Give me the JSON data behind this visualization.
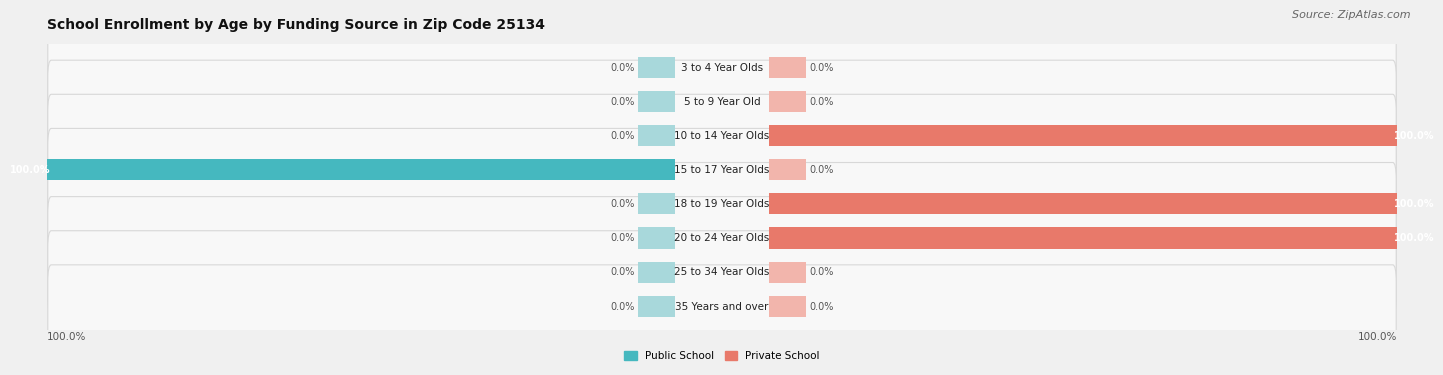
{
  "title": "School Enrollment by Age by Funding Source in Zip Code 25134",
  "source": "Source: ZipAtlas.com",
  "categories": [
    "3 to 4 Year Olds",
    "5 to 9 Year Old",
    "10 to 14 Year Olds",
    "15 to 17 Year Olds",
    "18 to 19 Year Olds",
    "20 to 24 Year Olds",
    "25 to 34 Year Olds",
    "35 Years and over"
  ],
  "public_vals": [
    0.0,
    0.0,
    0.0,
    100.0,
    0.0,
    0.0,
    0.0,
    0.0
  ],
  "private_vals": [
    0.0,
    0.0,
    100.0,
    0.0,
    100.0,
    100.0,
    0.0,
    0.0
  ],
  "public_color": "#45b8bf",
  "private_color": "#e8796a",
  "public_stub_color": "#a8d8db",
  "private_stub_color": "#f2b5ac",
  "public_label": "Public School",
  "private_label": "Private School",
  "bg_color": "#f0f0f0",
  "row_bg_color": "#f8f8f8",
  "title_fontsize": 10,
  "source_fontsize": 8,
  "label_fontsize": 7.5,
  "value_fontsize": 7,
  "bar_height": 0.62,
  "stub_size": 5.5,
  "xlim_left": -100,
  "xlim_right": 100,
  "left_axis_label": "100.0%",
  "right_axis_label": "100.0%"
}
